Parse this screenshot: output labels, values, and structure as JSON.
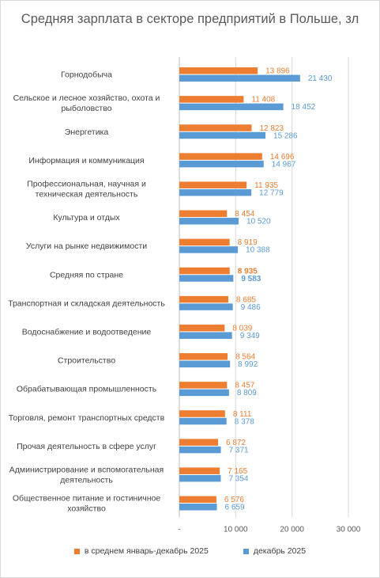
{
  "colors": {
    "series1": "#ed7d31",
    "series2": "#5b9bd5",
    "grid": "#d9d9d9"
  },
  "chart_data": {
    "type": "bar",
    "orientation": "horizontal",
    "title": "Средняя зарплата в секторе предприятий в Польше, зл",
    "categories": [
      "Горнодобыча",
      "Сельское и лесное хозяйство, охота и рыболовство",
      "Энергетика",
      "Информация и коммуникация",
      "Профессиональная, научная и техническая деятельность",
      "Культура и отдых",
      "Услуги на рынке недвижимости",
      "Средняя по стране",
      "Транспортная и складская деятельность",
      "Водоснабжение и водоотведение",
      "Строительство",
      "Обрабатывающая промышленность",
      "Торговля, ремонт транспортных средств",
      "Прочая деятельность в сфере услуг",
      "Администрирование и вспомогательная деятельность",
      "Общественное питание и гостиничное хозяйство"
    ],
    "category_lines": [
      [
        "Горнодобыча"
      ],
      [
        "Сельское и лесное хозяйство, охота и",
        "рыболовство"
      ],
      [
        "Энергетика"
      ],
      [
        "Информация и коммуникация"
      ],
      [
        "Профессиональная, научная и",
        "техническая деятельность"
      ],
      [
        "Культура и отдых"
      ],
      [
        "Услуги на рынке недвижимости"
      ],
      [
        "Средняя по стране"
      ],
      [
        "Транспортная и складская деятельность"
      ],
      [
        "Водоснабжение и водоотведение"
      ],
      [
        "Строительство"
      ],
      [
        "Обрабатывающая промышленность"
      ],
      [
        "Торговля, ремонт транспортных средств"
      ],
      [
        "Прочая деятельность в сфере услуг"
      ],
      [
        "Администрирование и вспомогательная",
        "деятельность"
      ],
      [
        "Общественное питание и гостиничное",
        "хозяйство"
      ]
    ],
    "series": [
      {
        "name": "в среднем январь-декабрь 2025",
        "values": [
          13896,
          11408,
          12823,
          14696,
          11935,
          8454,
          8919,
          8935,
          8685,
          8039,
          8564,
          8457,
          8111,
          6872,
          7165,
          6576
        ],
        "labels": [
          "13 896",
          "11 408",
          "12 823",
          "14 696",
          "11 935",
          "8 454",
          "8 919",
          "8 935",
          "8 685",
          "8 039",
          "8 564",
          "8 457",
          "8 111",
          "6 872",
          "7 165",
          "6 576"
        ]
      },
      {
        "name": "декабрь 2025",
        "values": [
          21430,
          18452,
          15286,
          14967,
          12779,
          10520,
          10388,
          9583,
          9486,
          9349,
          8992,
          8809,
          8378,
          7371,
          7354,
          6659
        ],
        "labels": [
          "21 430",
          "18 452",
          "15 286",
          "14 967",
          "12 779",
          "10 520",
          "10 388",
          "9 583",
          "9 486",
          "9 349",
          "8 992",
          "8 809",
          "8 378",
          "7 371",
          "7 354",
          "6 659"
        ]
      }
    ],
    "xlim": [
      0,
      30000
    ],
    "xticks": [
      "-",
      "10 000",
      "20 000",
      "30 000"
    ],
    "grid": true,
    "legend": "bottom",
    "emphasized_category": "Средняя по стране"
  }
}
